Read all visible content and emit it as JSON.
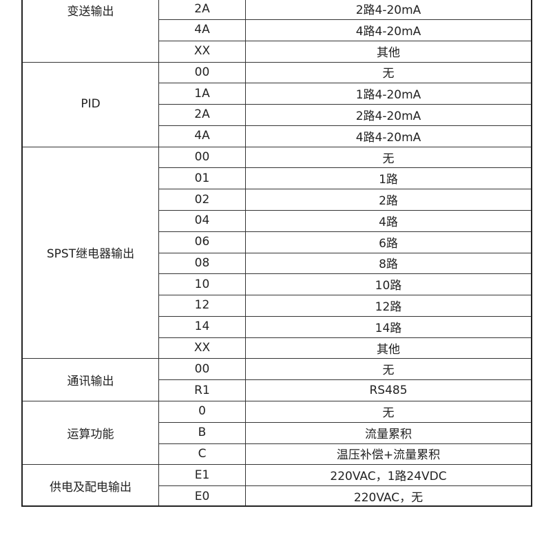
{
  "groups": [
    {
      "label": "变送输出",
      "rows": [
        [
          "2A",
          "2路4-20mA"
        ],
        [
          "4A",
          "4路4-20mA"
        ],
        [
          "XX",
          "其他"
        ]
      ]
    },
    {
      "label": "PID",
      "rows": [
        [
          "00",
          "无"
        ],
        [
          "1A",
          "1路4-20mA"
        ],
        [
          "2A",
          "2路4-20mA"
        ],
        [
          "4A",
          "4路4-20mA"
        ]
      ]
    },
    {
      "label": "SPST继电器输出",
      "rows": [
        [
          "00",
          "无"
        ],
        [
          "01",
          "1路"
        ],
        [
          "02",
          "2路"
        ],
        [
          "04",
          "4路"
        ],
        [
          "06",
          "6路"
        ],
        [
          "08",
          "8路"
        ],
        [
          "10",
          "10路"
        ],
        [
          "12",
          "12路"
        ],
        [
          "14",
          "14路"
        ],
        [
          "XX",
          "其他"
        ]
      ]
    },
    {
      "label": "通讯输出",
      "rows": [
        [
          "00",
          "无"
        ],
        [
          "R1",
          "RS485"
        ]
      ]
    },
    {
      "label": "运算功能",
      "rows": [
        [
          "0",
          "无"
        ],
        [
          "B",
          "流量累积"
        ],
        [
          "C",
          "温压补偿+流量累积"
        ]
      ]
    },
    {
      "label": "供电及配电输出",
      "rows": [
        [
          "E1",
          "220VAC，1路24VDC"
        ],
        [
          "E0",
          "220VAC，无"
        ]
      ]
    }
  ]
}
